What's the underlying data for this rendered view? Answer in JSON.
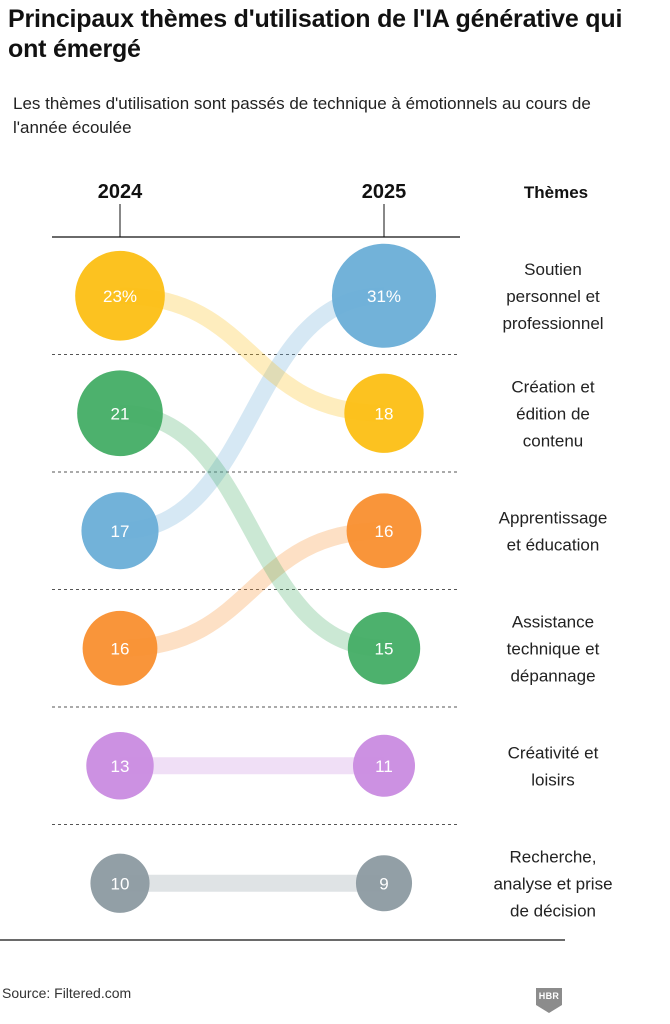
{
  "title": "Principaux thèmes d'utilisation de l'IA générative qui ont émergé",
  "subtitle": "Les thèmes d'utilisation sont passés de technique à émotionnels au cours de l'année écoulée",
  "source": "Source: Filtered.com",
  "logo": "HBR",
  "colors": {
    "soutien": "#6aaed7",
    "creation": "#fcbf14",
    "apprentissage": "#f98f2f",
    "assistance": "#43ad65",
    "creativite": "#c98be0",
    "recherche": "#8c9aa1"
  },
  "chart_data": {
    "type": "bump",
    "title": "Principaux thèmes d'utilisation de l'IA générative qui ont émergé",
    "x_labels": [
      "2024",
      "2025"
    ],
    "themes_header": "Thèmes",
    "themes": [
      {
        "name": "Soutien personnel et professionnel",
        "lines": [
          "Soutien",
          "personnel et",
          "professionnel"
        ],
        "color": "#6aaed7",
        "value_2024": 17,
        "label_2024": "17",
        "rank_2024": 3,
        "value_2025": 31,
        "label_2025": "31%",
        "rank_2025": 1
      },
      {
        "name": "Création et édition de contenu",
        "lines": [
          "Création et",
          "édition de",
          "contenu"
        ],
        "color": "#fcbf14",
        "value_2024": 23,
        "label_2024": "23%",
        "rank_2024": 1,
        "value_2025": 18,
        "label_2025": "18",
        "rank_2025": 2
      },
      {
        "name": "Apprentissage et éducation",
        "lines": [
          "Apprentissage",
          "et éducation"
        ],
        "color": "#f98f2f",
        "value_2024": 16,
        "label_2024": "16",
        "rank_2024": 4,
        "value_2025": 16,
        "label_2025": "16",
        "rank_2025": 3
      },
      {
        "name": "Assistance technique et dépannage",
        "lines": [
          "Assistance",
          "technique et",
          "dépannage"
        ],
        "color": "#43ad65",
        "value_2024": 21,
        "label_2024": "21",
        "rank_2024": 2,
        "value_2025": 15,
        "label_2025": "15",
        "rank_2025": 4
      },
      {
        "name": "Créativité et loisirs",
        "lines": [
          "Créativité et",
          "loisirs"
        ],
        "color": "#c98be0",
        "value_2024": 13,
        "label_2024": "13",
        "rank_2024": 5,
        "value_2025": 11,
        "label_2025": "11",
        "rank_2025": 5
      },
      {
        "name": "Recherche, analyse et prise de décision",
        "lines": [
          "Recherche,",
          "analyse et prise",
          "de décision"
        ],
        "color": "#8c9aa1",
        "value_2024": 10,
        "label_2024": "10",
        "rank_2024": 6,
        "value_2025": 9,
        "label_2025": "9",
        "rank_2025": 6
      }
    ]
  }
}
